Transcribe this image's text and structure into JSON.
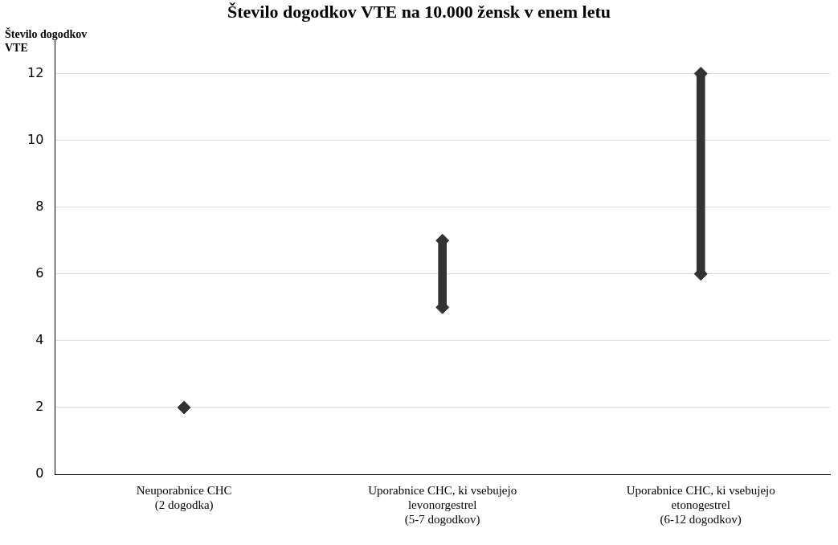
{
  "chart_data": {
    "type": "bar",
    "title": "Število dogodkov VTE na 10.000 žensk v enem letu",
    "ylabel": "Število dogodkov VTE",
    "categories": [
      "Neuporabnice CHC (2 dogodka)",
      "Uporabnice CHC, ki vsebujejo levonorgestrel (5-7 dogodkov)",
      "Uporabnice CHC, ki vsebujejo etonogestrel (6-12 dogodkov)"
    ],
    "series": [
      {
        "color": "#333333",
        "base": [
          null,
          5,
          6
        ],
        "values": [
          null,
          2,
          6
        ]
      },
      {
        "type": "scatter",
        "color": "#333333",
        "values": [
          2,
          5,
          6
        ]
      },
      {
        "type": "scatter",
        "color": "#333333",
        "values": [
          null,
          7,
          12
        ]
      }
    ],
    "ylim": [
      0,
      13
    ],
    "yticks": [
      0,
      2,
      4,
      6,
      8,
      10,
      12
    ],
    "grid": "y",
    "legend": false,
    "marker": "diamond"
  }
}
